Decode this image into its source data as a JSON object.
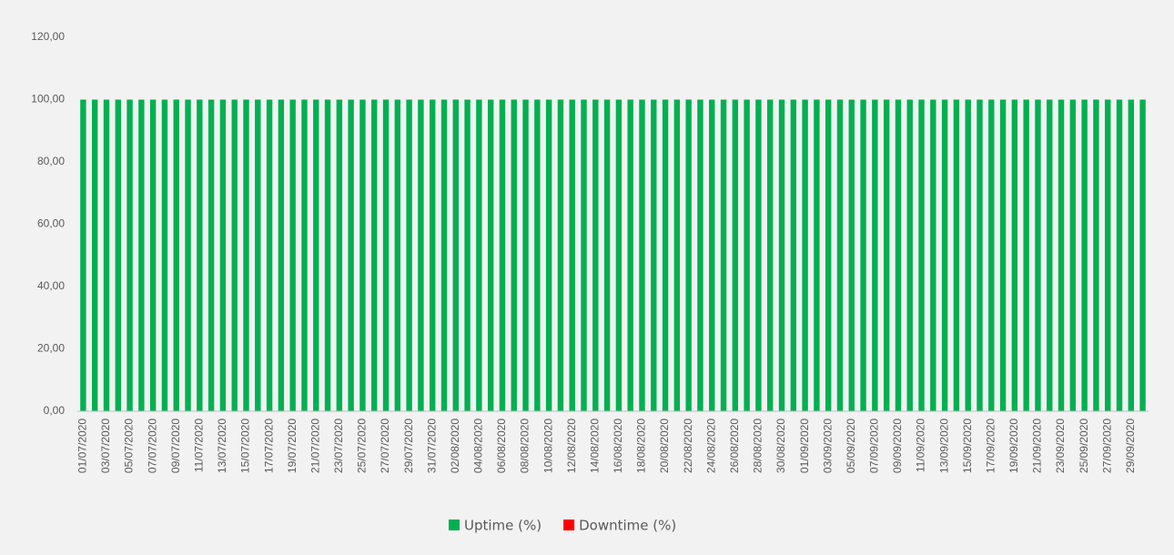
{
  "chart_data": {
    "type": "stacked_bar",
    "categories": [
      "01/07/2020",
      null,
      "03/07/2020",
      null,
      "05/07/2020",
      null,
      "07/07/2020",
      null,
      "09/07/2020",
      null,
      "11/07/2020",
      null,
      "13/07/2020",
      null,
      "15/07/2020",
      null,
      "17/07/2020",
      null,
      "19/07/2020",
      null,
      "21/07/2020",
      null,
      "23/07/2020",
      null,
      "25/07/2020",
      null,
      "27/07/2020",
      null,
      "29/07/2020",
      null,
      "31/07/2020",
      null,
      "02/08/2020",
      null,
      "04/08/2020",
      null,
      "06/08/2020",
      null,
      "08/08/2020",
      null,
      "10/08/2020",
      null,
      "12/08/2020",
      null,
      "14/08/2020",
      null,
      "16/08/2020",
      null,
      "18/08/2020",
      null,
      "20/08/2020",
      null,
      "22/08/2020",
      null,
      "24/08/2020",
      null,
      "26/08/2020",
      null,
      "28/08/2020",
      null,
      "30/08/2020",
      null,
      "01/09/2020",
      null,
      "03/09/2020",
      null,
      "05/09/2020",
      null,
      "07/09/2020",
      null,
      "09/09/2020",
      null,
      "11/09/2020",
      null,
      "13/09/2020",
      null,
      "15/09/2020",
      null,
      "17/09/2020",
      null,
      "19/09/2020",
      null,
      "21/09/2020",
      null,
      "23/09/2020",
      null,
      "25/09/2020",
      null,
      "27/09/2020",
      null,
      "29/09/2020",
      null
    ],
    "series": [
      {
        "name": "Uptime (%)",
        "color": "#00b050",
        "values": [
          100,
          100,
          100,
          100,
          100,
          100,
          100,
          100,
          100,
          100,
          100,
          100,
          100,
          100,
          100,
          100,
          100,
          100,
          100,
          100,
          100,
          100,
          100,
          100,
          100,
          100,
          100,
          100,
          100,
          100,
          100,
          100,
          100,
          100,
          100,
          100,
          100,
          100,
          100,
          100,
          100,
          100,
          100,
          100,
          100,
          100,
          100,
          100,
          100,
          100,
          100,
          100,
          100,
          100,
          100,
          100,
          100,
          100,
          100,
          100,
          100,
          100,
          100,
          100,
          100,
          100,
          100,
          100,
          100,
          100,
          100,
          100,
          100,
          100,
          100,
          100,
          100,
          100,
          100,
          100,
          100,
          100,
          100,
          100,
          100,
          100,
          100,
          100,
          100,
          100,
          100,
          100
        ]
      },
      {
        "name": "Downtime (%)",
        "color": "#ff0000",
        "values": [
          0,
          0,
          0,
          0,
          0,
          0,
          0,
          0,
          0,
          0,
          0,
          0,
          0,
          0,
          0,
          0,
          0,
          0,
          0,
          0,
          0,
          0,
          0,
          0,
          0,
          0,
          0,
          0,
          0,
          0,
          0,
          0,
          0,
          0,
          0,
          0,
          0,
          0,
          0,
          0,
          0,
          0,
          0,
          0,
          0,
          0,
          0,
          0,
          0,
          0,
          0,
          0,
          0,
          0,
          0,
          0,
          0,
          0,
          0,
          0,
          0,
          0,
          0,
          0,
          0,
          0,
          0,
          0,
          0,
          0,
          0,
          0,
          0,
          0,
          0,
          0,
          0,
          0,
          0,
          0,
          0,
          0,
          0,
          0,
          0,
          0,
          0,
          0,
          0,
          0,
          0,
          0
        ]
      }
    ],
    "ylim": [
      0,
      120
    ],
    "yticks": [
      {
        "value": 0,
        "label": "0,00"
      },
      {
        "value": 20,
        "label": "20,00"
      },
      {
        "value": 40,
        "label": "40,00"
      },
      {
        "value": 60,
        "label": "60,00"
      },
      {
        "value": 80,
        "label": "80,00"
      },
      {
        "value": 100,
        "label": "100,00"
      },
      {
        "value": 120,
        "label": "120,00"
      }
    ],
    "legend": "bottom"
  }
}
